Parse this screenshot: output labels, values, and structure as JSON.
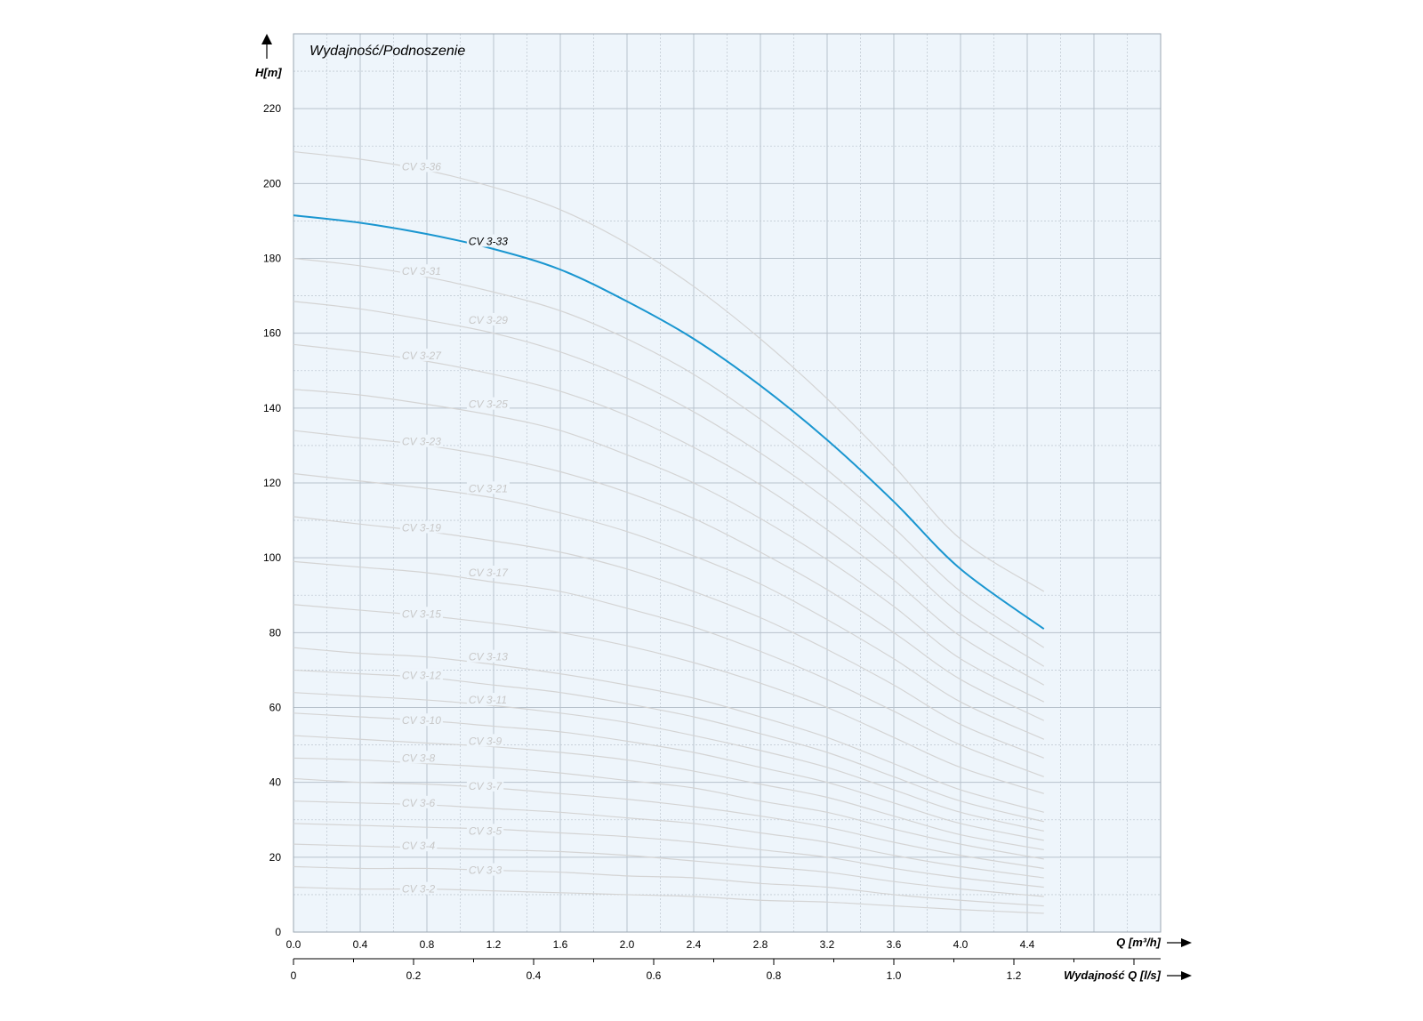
{
  "chart_data": {
    "type": "line",
    "title": "Wydajność/Podnoszenie",
    "ylabel": "H[m]",
    "xlabel": "Q  [m³/h]",
    "x2label": "Wydajność Q [l/s]",
    "xlim": [
      0,
      5.2
    ],
    "ylim": [
      0,
      240
    ],
    "x_ticks": [
      "0.0",
      "0.4",
      "0.8",
      "1.2",
      "1.6",
      "2.0",
      "2.4",
      "2.8",
      "3.2",
      "3.6",
      "4.0",
      "4.4"
    ],
    "x2_ticks": [
      "0",
      "0.2",
      "0.4",
      "0.6",
      "0.8",
      "1.0",
      "1.2"
    ],
    "y_ticks": [
      "0",
      "20",
      "40",
      "60",
      "80",
      "100",
      "120",
      "140",
      "160",
      "180",
      "200",
      "220"
    ],
    "grid": true,
    "x": [
      0,
      0.4,
      0.8,
      1.2,
      1.6,
      2.0,
      2.4,
      2.8,
      3.2,
      3.6,
      4.0,
      4.5
    ],
    "highlight": "CV 3-33",
    "colors": {
      "highlight": "#1a96d0",
      "curve": "#d4d4d4",
      "curve_label": "#c8c8c8",
      "background": "#eef5fb"
    },
    "series": [
      {
        "name": "CV 3-36",
        "values": [
          208.5,
          206.5,
          203.5,
          199,
          193,
          184,
          172.5,
          158.5,
          142.5,
          124.5,
          105,
          91
        ]
      },
      {
        "name": "CV 3-33",
        "values": [
          191.5,
          189.5,
          186.5,
          182.5,
          177,
          168.5,
          158.5,
          146,
          131.5,
          115,
          97,
          81
        ]
      },
      {
        "name": "CV 3-31",
        "values": [
          180,
          178,
          175,
          171,
          166,
          158.5,
          149,
          137,
          123.5,
          108,
          91,
          76
        ]
      },
      {
        "name": "CV 3-29",
        "values": [
          168.5,
          166.5,
          163.5,
          160,
          155,
          148,
          139,
          128,
          115.5,
          101,
          85,
          71
        ]
      },
      {
        "name": "CV 3-27",
        "values": [
          157,
          155,
          152.5,
          149,
          144.5,
          138,
          129.5,
          119.5,
          107.5,
          94,
          79,
          66
        ]
      },
      {
        "name": "CV 3-25",
        "values": [
          145,
          143.5,
          141,
          138,
          134,
          127.5,
          120,
          110.5,
          99.5,
          87,
          73,
          61.5
        ]
      },
      {
        "name": "CV 3-23",
        "values": [
          134,
          132,
          130,
          127,
          123,
          117.5,
          110.5,
          101.5,
          91.5,
          80,
          67.5,
          56.5
        ]
      },
      {
        "name": "CV 3-21",
        "values": [
          122.5,
          120.5,
          118.5,
          116,
          112,
          107,
          100.5,
          93,
          83.5,
          73,
          61.5,
          51.5
        ]
      },
      {
        "name": "CV 3-19",
        "values": [
          111,
          109,
          107,
          104.5,
          101.5,
          97,
          91,
          84,
          75.5,
          66,
          55.5,
          46.5
        ]
      },
      {
        "name": "CV 3-17",
        "values": [
          99,
          97.5,
          96,
          93.5,
          91,
          86.5,
          81.5,
          75,
          67.5,
          59,
          50,
          41.5
        ]
      },
      {
        "name": "CV 3-15",
        "values": [
          87.5,
          86,
          84.5,
          82.5,
          80,
          76.5,
          72,
          66.5,
          60,
          52,
          44,
          37
        ]
      },
      {
        "name": "CV 3-13",
        "values": [
          76,
          74.5,
          73.5,
          71.5,
          69,
          66,
          62.5,
          57.5,
          52,
          45,
          38,
          32
        ]
      },
      {
        "name": "CV 3-12",
        "values": [
          70,
          69,
          68,
          66,
          64,
          61,
          57.5,
          53,
          48,
          41.5,
          35,
          29.5
        ]
      },
      {
        "name": "CV 3-11",
        "values": [
          64,
          63,
          62,
          60.5,
          58.5,
          56,
          52.5,
          48.5,
          44,
          38,
          32,
          27
        ]
      },
      {
        "name": "CV 3-10",
        "values": [
          58.5,
          57.5,
          56.5,
          55,
          53.5,
          51,
          48,
          44,
          40,
          34.5,
          29,
          24.5
        ]
      },
      {
        "name": "CV 3-9",
        "values": [
          52.5,
          51.5,
          50.5,
          49.5,
          48,
          46,
          43,
          39.5,
          36,
          31,
          26,
          22
        ]
      },
      {
        "name": "CV 3-8",
        "values": [
          46.5,
          46,
          45,
          44,
          42.5,
          40.5,
          38.5,
          35,
          32,
          27.5,
          23.5,
          19.5
        ]
      },
      {
        "name": "CV 3-7",
        "values": [
          41,
          40,
          39.5,
          38.5,
          37,
          35.5,
          33.5,
          31,
          28,
          24,
          20.5,
          17
        ]
      },
      {
        "name": "CV 3-6",
        "values": [
          35,
          34.5,
          34,
          33,
          32,
          30.5,
          29,
          26.5,
          24,
          20.5,
          17.5,
          14.5
        ]
      },
      {
        "name": "CV 3-5",
        "values": [
          29,
          28.5,
          28,
          27.5,
          26.5,
          25.5,
          24,
          22,
          20,
          17,
          14.5,
          12
        ]
      },
      {
        "name": "CV 3-4",
        "values": [
          23.5,
          23,
          22.5,
          22,
          21.5,
          20.5,
          19,
          17.5,
          16,
          13.5,
          11.5,
          9.5
        ]
      },
      {
        "name": "CV 3-3",
        "values": [
          17.5,
          17,
          17,
          16.5,
          16,
          15,
          14.5,
          13,
          12,
          10,
          8.5,
          7
        ]
      },
      {
        "name": "CV 3-2",
        "values": [
          12,
          11.5,
          11.5,
          11,
          10.5,
          10,
          9.5,
          8.5,
          8,
          7,
          6,
          5
        ]
      }
    ],
    "labels": [
      {
        "text": "CV 3-36",
        "x": 0.65,
        "y": 204.5
      },
      {
        "text": "CV 3-33",
        "x": 1.05,
        "y": 184.5
      },
      {
        "text": "CV 3-31",
        "x": 0.65,
        "y": 176.5
      },
      {
        "text": "CV 3-29",
        "x": 1.05,
        "y": 163.5
      },
      {
        "text": "CV 3-27",
        "x": 0.65,
        "y": 154
      },
      {
        "text": "CV 3-25",
        "x": 1.05,
        "y": 141
      },
      {
        "text": "CV 3-23",
        "x": 0.65,
        "y": 131
      },
      {
        "text": "CV 3-21",
        "x": 1.05,
        "y": 118.5
      },
      {
        "text": "CV 3-19",
        "x": 0.65,
        "y": 108
      },
      {
        "text": "CV 3-17",
        "x": 1.05,
        "y": 96
      },
      {
        "text": "CV 3-15",
        "x": 0.65,
        "y": 85
      },
      {
        "text": "CV 3-13",
        "x": 1.05,
        "y": 73.5
      },
      {
        "text": "CV 3-12",
        "x": 0.65,
        "y": 68.5
      },
      {
        "text": "CV 3-11",
        "x": 1.05,
        "y": 62
      },
      {
        "text": "CV 3-10",
        "x": 0.65,
        "y": 56.5
      },
      {
        "text": "CV 3-9",
        "x": 1.05,
        "y": 51
      },
      {
        "text": "CV 3-8",
        "x": 0.65,
        "y": 46.5
      },
      {
        "text": "CV 3-7",
        "x": 1.05,
        "y": 39
      },
      {
        "text": "CV 3-6",
        "x": 0.65,
        "y": 34.5
      },
      {
        "text": "CV 3-5",
        "x": 1.05,
        "y": 27
      },
      {
        "text": "CV 3-4",
        "x": 0.65,
        "y": 23
      },
      {
        "text": "CV 3-3",
        "x": 1.05,
        "y": 16.5
      },
      {
        "text": "CV 3-2",
        "x": 0.65,
        "y": 11.5
      }
    ]
  }
}
